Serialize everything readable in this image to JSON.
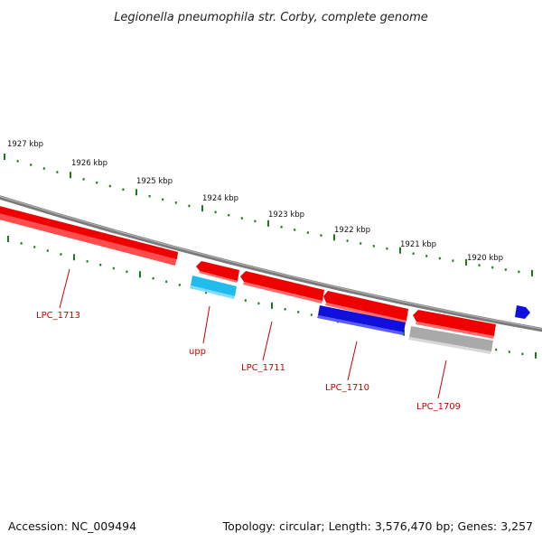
{
  "title": "Legionella pneumophila str. Corby, complete genome",
  "accession_text": "Accession: NC_009494",
  "summary_text": "Topology: circular; Length: 3,576,470 bp; Genes: 3,257",
  "colors": {
    "backbone": "#808080",
    "tick": "#1a7a1a",
    "gene_red": "#ee0000",
    "gene_light_blue": "#22bbee",
    "gene_blue": "#1010dd",
    "gene_gray": "#b0b0b0",
    "label": "#cc0000"
  },
  "kbp_labels": [
    "1927 kbp",
    "1926 kbp",
    "1925 kbp",
    "1924 kbp",
    "1923 kbp",
    "1922 kbp",
    "1921 kbp",
    "1920 kbp"
  ],
  "genes": [
    {
      "name": "LPC_1713",
      "color": "red",
      "strand": "+"
    },
    {
      "name": "upp",
      "color": "light-blue",
      "strand": "-"
    },
    {
      "name": "",
      "color": "red",
      "strand": "+"
    },
    {
      "name": "LPC_1711",
      "color": "red",
      "strand": "+"
    },
    {
      "name": "",
      "color": "red",
      "strand": "+"
    },
    {
      "name": "LPC_1710",
      "color": "blue",
      "strand": "-"
    },
    {
      "name": "",
      "color": "red",
      "strand": "+"
    },
    {
      "name": "LPC_1709",
      "color": "gray",
      "strand": "-"
    },
    {
      "name": "",
      "color": "blue",
      "strand": "+"
    }
  ]
}
